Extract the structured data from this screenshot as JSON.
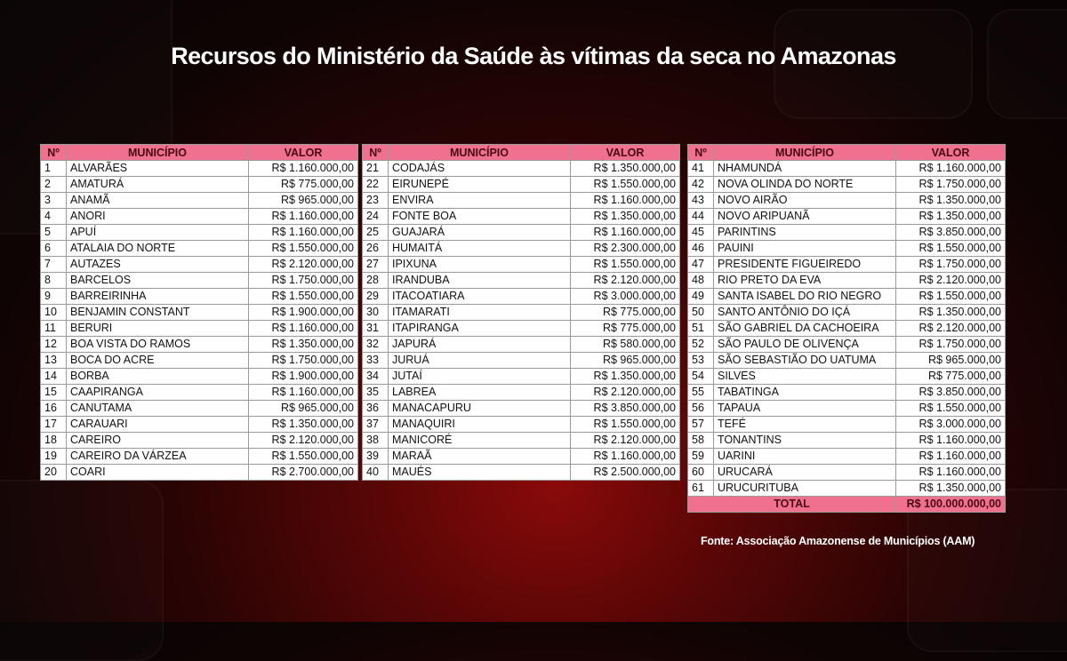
{
  "title": "Recursos do Ministério da Saúde às vítimas da seca no Amazonas",
  "headers": {
    "num": "Nº",
    "municipio": "MUNICÍPIO",
    "valor": "VALOR"
  },
  "tables": [
    {
      "rows": [
        [
          "1",
          "ALVARÃES",
          "R$ 1.160.000,00"
        ],
        [
          "2",
          "AMATURÁ",
          "R$ 775.000,00"
        ],
        [
          "3",
          "ANAMÃ",
          "R$ 965.000,00"
        ],
        [
          "4",
          "ANORI",
          "R$ 1.160.000,00"
        ],
        [
          "5",
          "APUÍ",
          "R$ 1.160.000,00"
        ],
        [
          "6",
          "ATALAIA DO NORTE",
          "R$ 1.550.000,00"
        ],
        [
          "7",
          "AUTAZES",
          "R$ 2.120.000,00"
        ],
        [
          "8",
          "BARCELOS",
          "R$ 1.750.000,00"
        ],
        [
          "9",
          "BARREIRINHA",
          "R$ 1.550.000,00"
        ],
        [
          "10",
          "BENJAMIN CONSTANT",
          "R$ 1.900.000,00"
        ],
        [
          "11",
          "BERURI",
          "R$ 1.160.000,00"
        ],
        [
          "12",
          "BOA VISTA DO RAMOS",
          "R$ 1.350.000,00"
        ],
        [
          "13",
          "BOCA DO ACRE",
          "R$ 1.750.000,00"
        ],
        [
          "14",
          "BORBA",
          "R$ 1.900.000,00"
        ],
        [
          "15",
          "CAAPIRANGA",
          "R$ 1.160.000,00"
        ],
        [
          "16",
          "CANUTAMA",
          "R$ 965.000,00"
        ],
        [
          "17",
          "CARAUARI",
          "R$ 1.350.000,00"
        ],
        [
          "18",
          "CAREIRO",
          "R$ 2.120.000,00"
        ],
        [
          "19",
          "CAREIRO DA VÁRZEA",
          "R$ 1.550.000,00"
        ],
        [
          "20",
          "COARI",
          "R$ 2.700.000,00"
        ]
      ]
    },
    {
      "rows": [
        [
          "21",
          "CODAJÁS",
          "R$ 1.350.000,00"
        ],
        [
          "22",
          "EIRUNEPÉ",
          "R$ 1.550.000,00"
        ],
        [
          "23",
          "ENVIRA",
          "R$ 1.160.000,00"
        ],
        [
          "24",
          "FONTE BOA",
          "R$ 1.350.000,00"
        ],
        [
          "25",
          "GUAJARÁ",
          "R$ 1.160.000,00"
        ],
        [
          "26",
          "HUMAITÁ",
          "R$ 2.300.000,00"
        ],
        [
          "27",
          "IPIXUNA",
          "R$ 1.550.000,00"
        ],
        [
          "28",
          "IRANDUBA",
          "R$ 2.120.000,00"
        ],
        [
          "29",
          "ITACOATIARA",
          "R$ 3.000.000,00"
        ],
        [
          "30",
          "ITAMARATI",
          "R$ 775.000,00"
        ],
        [
          "31",
          "ITAPIRANGA",
          "R$ 775.000,00"
        ],
        [
          "32",
          "JAPURÁ",
          "R$ 580.000,00"
        ],
        [
          "33",
          "JURUÁ",
          "R$ 965.000,00"
        ],
        [
          "34",
          "JUTAÍ",
          "R$ 1.350.000,00"
        ],
        [
          "35",
          "LABREA",
          "R$ 2.120.000,00"
        ],
        [
          "36",
          "MANACAPURU",
          "R$ 3.850.000,00"
        ],
        [
          "37",
          "MANAQUIRI",
          "R$ 1.550.000,00"
        ],
        [
          "38",
          "MANICORÉ",
          "R$ 2.120.000,00"
        ],
        [
          "39",
          "MARAÃ",
          "R$ 1.160.000,00"
        ],
        [
          "40",
          "MAUÉS",
          "R$ 2.500.000,00"
        ]
      ]
    },
    {
      "rows": [
        [
          "41",
          "NHAMUNDÁ",
          "R$ 1.160.000,00"
        ],
        [
          "42",
          "NOVA OLINDA DO NORTE",
          "R$ 1.750.000,00"
        ],
        [
          "43",
          "NOVO AIRÃO",
          "R$ 1.350.000,00"
        ],
        [
          "44",
          "NOVO ARIPUANÃ",
          "R$ 1.350.000,00"
        ],
        [
          "45",
          "PARINTINS",
          "R$ 3.850.000,00"
        ],
        [
          "46",
          "PAUINI",
          "R$ 1.550.000,00"
        ],
        [
          "47",
          "PRESIDENTE FIGUEIREDO",
          "R$ 1.750.000,00"
        ],
        [
          "48",
          "RIO PRETO DA EVA",
          "R$ 2.120.000,00"
        ],
        [
          "49",
          "SANTA ISABEL DO RIO NEGRO",
          "R$ 1.550.000,00"
        ],
        [
          "50",
          "SANTO ANTÔNIO DO IÇÁ",
          "R$ 1.350.000,00"
        ],
        [
          "51",
          "SÃO GABRIEL DA CACHOEIRA",
          "R$ 2.120.000,00"
        ],
        [
          "52",
          "SÃO PAULO DE OLIVENÇA",
          "R$ 1.750.000,00"
        ],
        [
          "53",
          "SÃO SEBASTIÃO DO UATUMA",
          "R$ 965.000,00"
        ],
        [
          "54",
          "SILVES",
          "R$ 775.000,00"
        ],
        [
          "55",
          "TABATINGA",
          "R$ 3.850.000,00"
        ],
        [
          "56",
          "TAPAUA",
          "R$ 1.550.000,00"
        ],
        [
          "57",
          "TEFÉ",
          "R$ 3.000.000,00"
        ],
        [
          "58",
          "TONANTINS",
          "R$ 1.160.000,00"
        ],
        [
          "59",
          "UARINI",
          "R$ 1.160.000,00"
        ],
        [
          "60",
          "URUCARÁ",
          "R$ 1.160.000,00"
        ],
        [
          "61",
          "URUCURITUBA",
          "R$ 1.350.000,00"
        ]
      ]
    }
  ],
  "total": {
    "label": "TOTAL",
    "value": "R$ 100.000.000,00"
  },
  "source": "Fonte: Associação Amazonense de Municípios (AAM)",
  "colors": {
    "header": "#f0708f",
    "background": "#2a0404",
    "accent": "#8a0a0a"
  }
}
